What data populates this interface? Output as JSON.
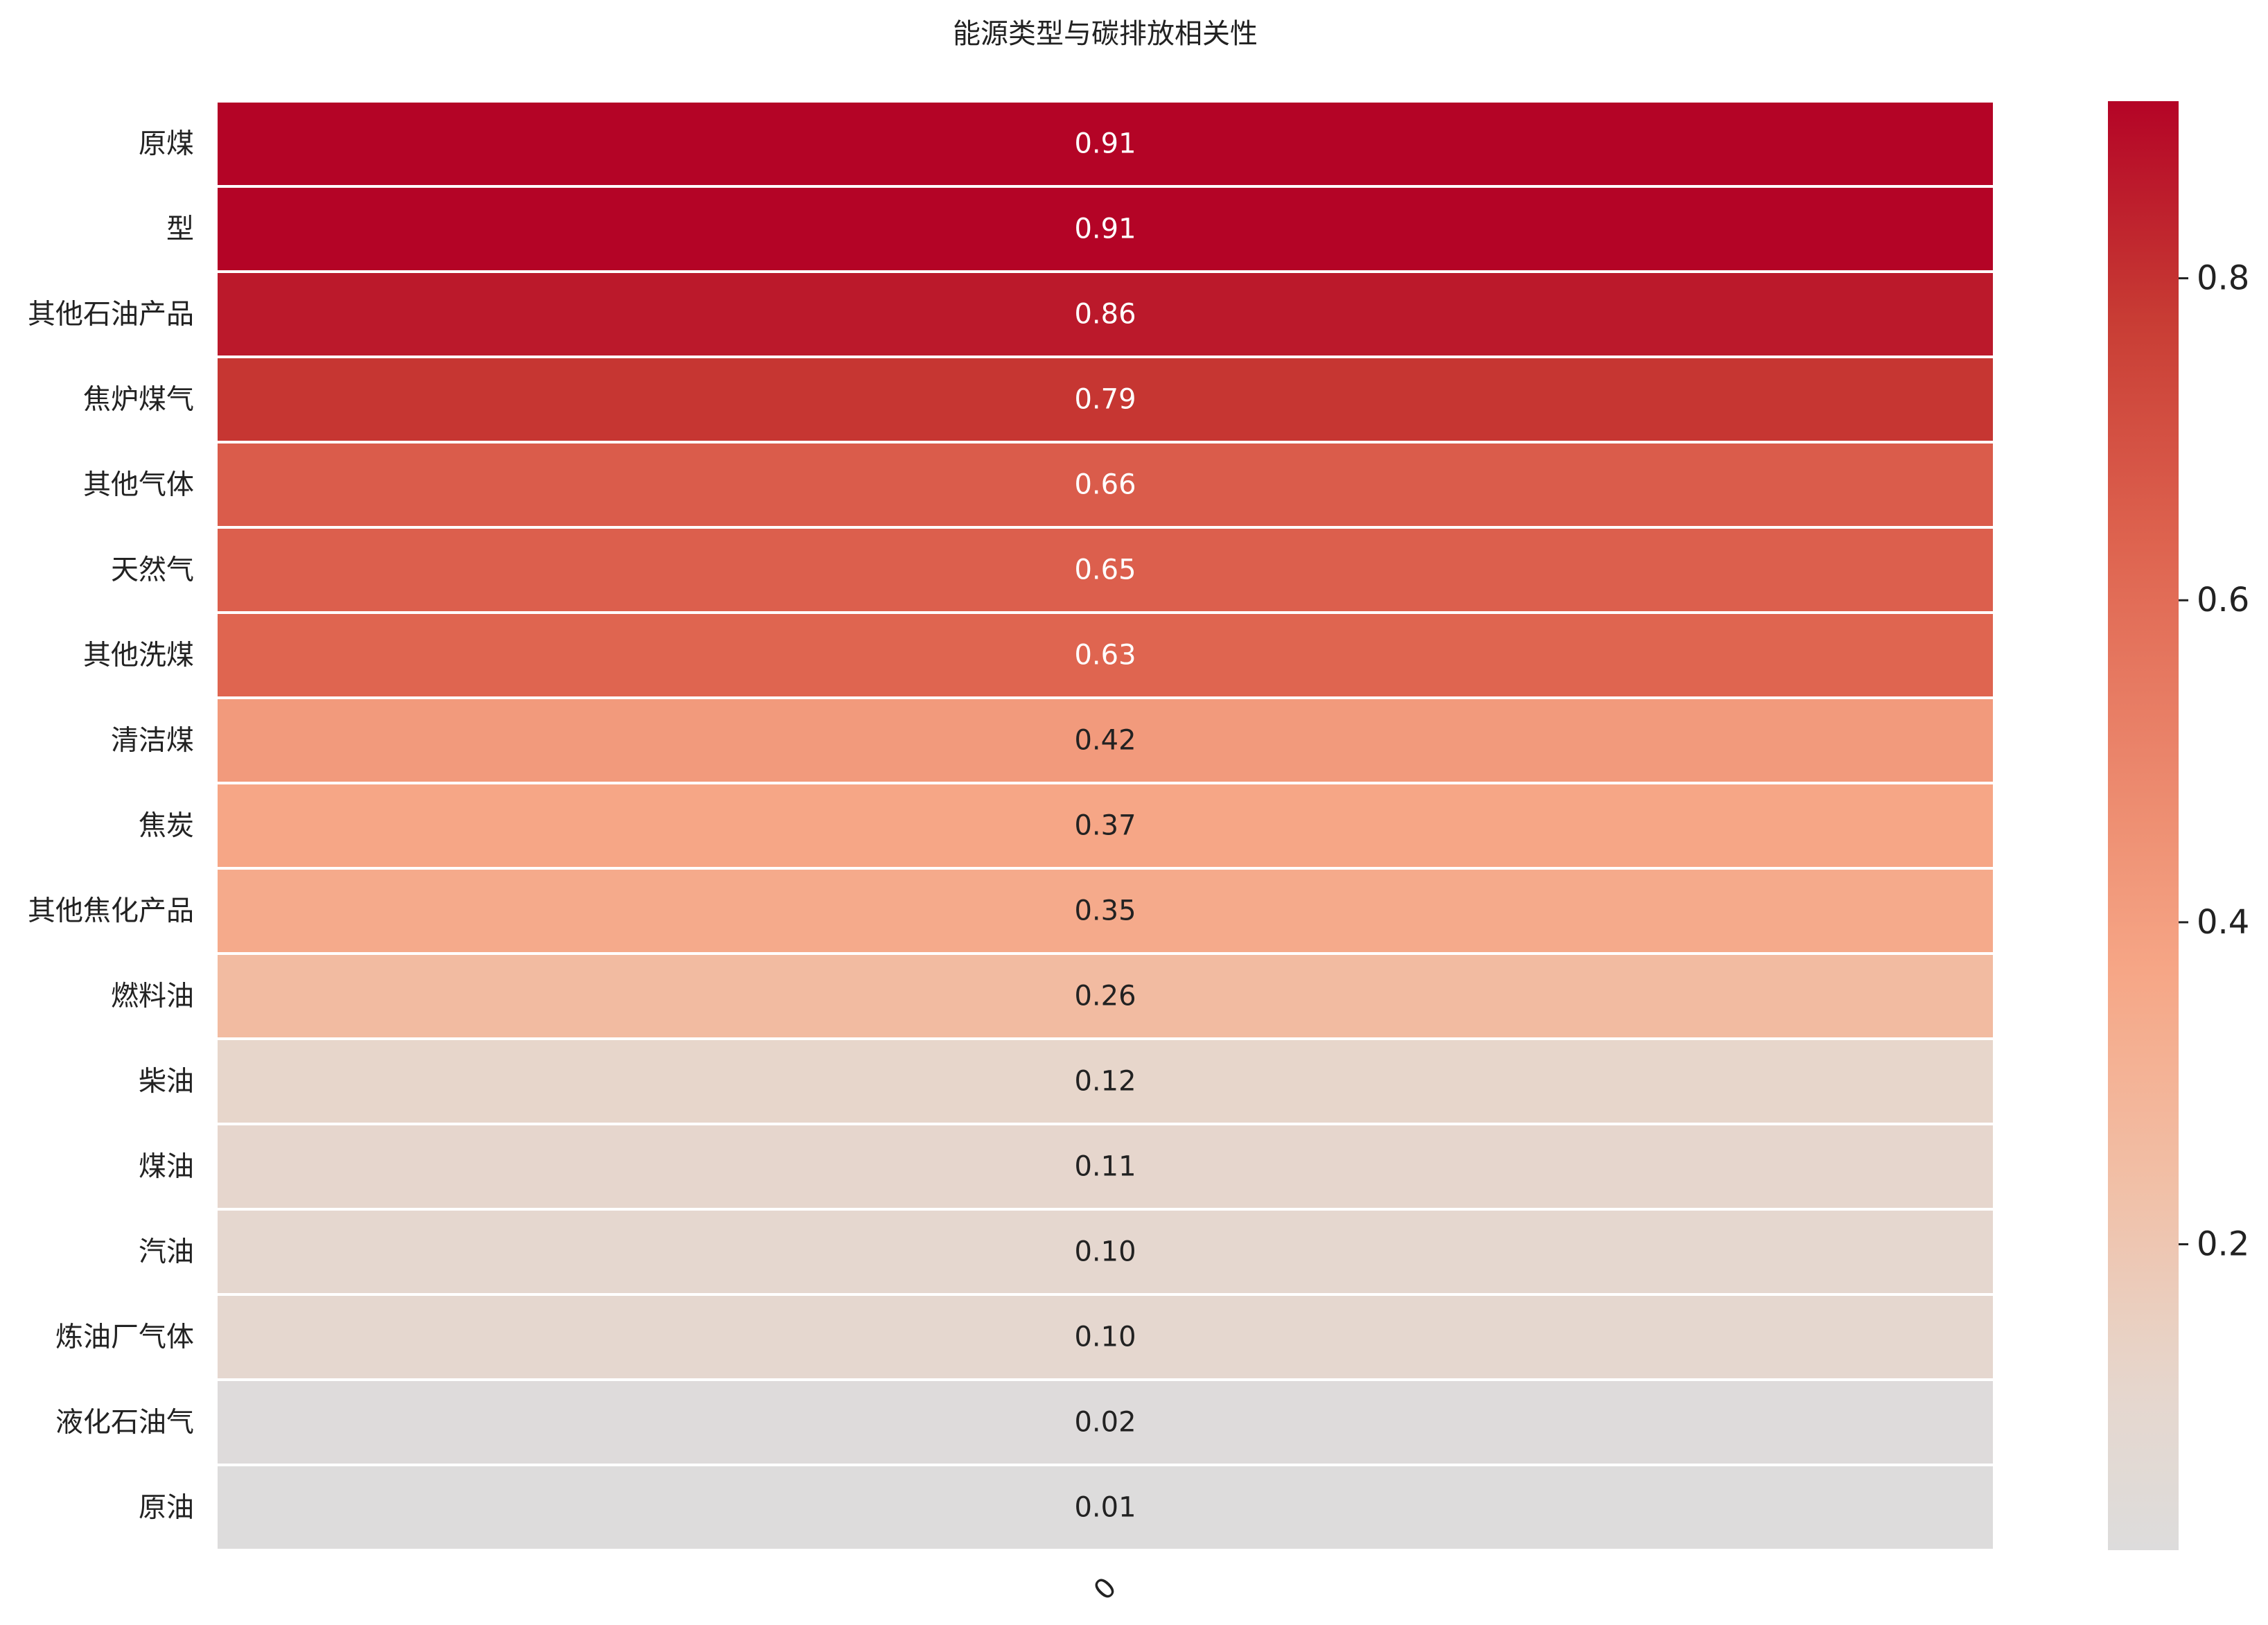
{
  "chart_data": {
    "type": "heatmap",
    "title": "能源类型与碳排放相关性",
    "columns": [
      "0"
    ],
    "rows": [
      "原煤",
      "型",
      "其他石油产品",
      "焦炉煤气",
      "其他气体",
      "天然气",
      "其他洗煤",
      "清洁煤",
      "焦炭",
      "其他焦化产品",
      "燃料油",
      "柴油",
      "煤油",
      "汽油",
      "炼油厂气体",
      "液化石油气",
      "原油"
    ],
    "values": [
      0.91,
      0.91,
      0.86,
      0.79,
      0.66,
      0.65,
      0.63,
      0.42,
      0.37,
      0.35,
      0.26,
      0.12,
      0.11,
      0.1,
      0.1,
      0.02,
      0.01
    ],
    "value_labels": [
      "0.91",
      "0.91",
      "0.86",
      "0.79",
      "0.66",
      "0.65",
      "0.63",
      "0.42",
      "0.37",
      "0.35",
      "0.26",
      "0.12",
      "0.11",
      "0.10",
      "0.10",
      "0.02",
      "0.01"
    ],
    "colormap": "coolwarm",
    "colorbar": {
      "range": [
        0.01,
        0.91
      ],
      "ticks": [
        0.2,
        0.4,
        0.6,
        0.8
      ],
      "tick_labels": [
        "0.2",
        "0.4",
        "0.6",
        "0.8"
      ]
    },
    "xlabel": "",
    "ylabel": ""
  }
}
